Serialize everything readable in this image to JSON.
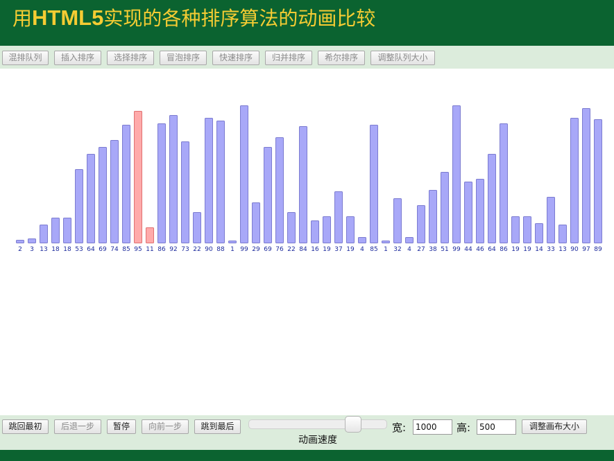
{
  "header": {
    "title_prefix": "用",
    "title_strong": "HTML5",
    "title_suffix": "实现的各种排序算法的动画比较"
  },
  "toolbar": {
    "buttons": [
      {
        "label": "混排队列",
        "enabled": false
      },
      {
        "label": "插入排序",
        "enabled": false
      },
      {
        "label": "选择排序",
        "enabled": false
      },
      {
        "label": "冒泡排序",
        "enabled": false
      },
      {
        "label": "快速排序",
        "enabled": false
      },
      {
        "label": "归并排序",
        "enabled": false
      },
      {
        "label": "希尔排序",
        "enabled": false
      },
      {
        "label": "调整队列大小",
        "enabled": false
      }
    ]
  },
  "chart_data": {
    "type": "bar",
    "values": [
      2,
      3,
      13,
      18,
      18,
      53,
      64,
      69,
      74,
      85,
      95,
      11,
      86,
      92,
      73,
      22,
      90,
      88,
      1,
      99,
      29,
      69,
      76,
      22,
      84,
      16,
      19,
      37,
      19,
      4,
      85,
      1,
      32,
      4,
      27,
      38,
      51,
      99,
      44,
      46,
      64,
      86,
      19,
      19,
      14,
      33,
      13,
      90,
      97,
      89
    ],
    "highlighted_indices": [
      10,
      11
    ],
    "colors": {
      "bar": "#a8a8f8",
      "bar_border": "#7b7bd0",
      "highlight": "#ffaaaa",
      "highlight_border": "#e07070",
      "label": "#1c2a9c"
    }
  },
  "controls": {
    "first_label": "跳回最初",
    "back_label": "后退一步",
    "pause_label": "暂停",
    "forward_label": "向前一步",
    "last_label": "跳到最后",
    "speed_label": "动画速度",
    "width_label": "宽:",
    "width_value": "1000",
    "height_label": "高:",
    "height_value": "500",
    "resize_label": "调整画布大小"
  },
  "colors": {
    "header_bg": "#0b6330",
    "title": "#f5cc33",
    "panel_bg": "#dcecdc"
  }
}
